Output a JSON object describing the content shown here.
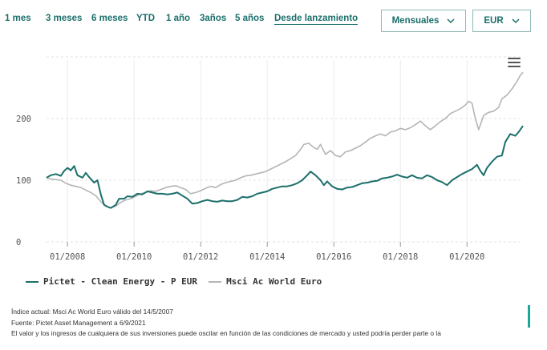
{
  "range_buttons": [
    {
      "label": "1 mes"
    },
    {
      "label": "3 meses"
    },
    {
      "label": "6 meses"
    },
    {
      "label": "YTD"
    },
    {
      "label": "1 año"
    },
    {
      "label": "3años"
    },
    {
      "label": "5 años"
    },
    {
      "label": "Desde lanzamiento",
      "active": true
    }
  ],
  "frequency_select": {
    "value": "Mensuales"
  },
  "currency_select": {
    "value": "EUR"
  },
  "icons": {
    "menu": "hamburger-menu-icon",
    "dropdown": "chevron-down-icon"
  },
  "colors": {
    "fund": "#1b6f6b",
    "benchmark": "#b5b5b5",
    "accent": "#1a6e6a"
  },
  "chart_data": {
    "type": "line",
    "x_ticks": [
      "01/2008",
      "01/2010",
      "01/2012",
      "01/2014",
      "01/2016",
      "01/2018",
      "01/2020"
    ],
    "y_ticks": [
      "0",
      "100",
      "200"
    ],
    "ylim": [
      0,
      300
    ],
    "xlim": [
      2007.37,
      2021.68
    ],
    "series": [
      {
        "name": "Pictet - Clean Energy - P EUR",
        "points": [
          [
            2007.37,
            104
          ],
          [
            2007.5,
            108
          ],
          [
            2007.65,
            110
          ],
          [
            2007.8,
            107
          ],
          [
            2007.9,
            115
          ],
          [
            2008.0,
            120
          ],
          [
            2008.1,
            116
          ],
          [
            2008.2,
            123
          ],
          [
            2008.3,
            108
          ],
          [
            2008.45,
            104
          ],
          [
            2008.55,
            112
          ],
          [
            2008.65,
            105
          ],
          [
            2008.8,
            96
          ],
          [
            2008.9,
            100
          ],
          [
            2009.0,
            77
          ],
          [
            2009.1,
            60
          ],
          [
            2009.2,
            57
          ],
          [
            2009.3,
            55
          ],
          [
            2009.45,
            60
          ],
          [
            2009.55,
            70
          ],
          [
            2009.7,
            70
          ],
          [
            2009.8,
            74
          ],
          [
            2009.95,
            73
          ],
          [
            2010.1,
            78
          ],
          [
            2010.25,
            77
          ],
          [
            2010.4,
            82
          ],
          [
            2010.55,
            80
          ],
          [
            2010.7,
            78
          ],
          [
            2010.85,
            78
          ],
          [
            2011.0,
            77
          ],
          [
            2011.15,
            78
          ],
          [
            2011.3,
            80
          ],
          [
            2011.45,
            75
          ],
          [
            2011.6,
            70
          ],
          [
            2011.75,
            62
          ],
          [
            2011.9,
            63
          ],
          [
            2012.05,
            66
          ],
          [
            2012.2,
            68
          ],
          [
            2012.35,
            66
          ],
          [
            2012.5,
            65
          ],
          [
            2012.65,
            67
          ],
          [
            2012.8,
            66
          ],
          [
            2012.95,
            66
          ],
          [
            2013.1,
            68
          ],
          [
            2013.25,
            73
          ],
          [
            2013.4,
            72
          ],
          [
            2013.55,
            74
          ],
          [
            2013.7,
            78
          ],
          [
            2013.85,
            80
          ],
          [
            2014.0,
            82
          ],
          [
            2014.15,
            86
          ],
          [
            2014.3,
            88
          ],
          [
            2014.45,
            90
          ],
          [
            2014.6,
            90
          ],
          [
            2014.75,
            92
          ],
          [
            2014.9,
            95
          ],
          [
            2015.05,
            100
          ],
          [
            2015.2,
            108
          ],
          [
            2015.3,
            114
          ],
          [
            2015.45,
            108
          ],
          [
            2015.6,
            100
          ],
          [
            2015.7,
            92
          ],
          [
            2015.8,
            98
          ],
          [
            2015.95,
            90
          ],
          [
            2016.1,
            86
          ],
          [
            2016.25,
            85
          ],
          [
            2016.4,
            88
          ],
          [
            2016.55,
            89
          ],
          [
            2016.7,
            92
          ],
          [
            2016.85,
            95
          ],
          [
            2017.0,
            96
          ],
          [
            2017.15,
            98
          ],
          [
            2017.3,
            99
          ],
          [
            2017.45,
            103
          ],
          [
            2017.6,
            104
          ],
          [
            2017.75,
            106
          ],
          [
            2017.9,
            109
          ],
          [
            2018.05,
            106
          ],
          [
            2018.2,
            104
          ],
          [
            2018.35,
            108
          ],
          [
            2018.5,
            104
          ],
          [
            2018.65,
            103
          ],
          [
            2018.8,
            108
          ],
          [
            2018.95,
            105
          ],
          [
            2019.1,
            100
          ],
          [
            2019.25,
            97
          ],
          [
            2019.4,
            92
          ],
          [
            2019.55,
            100
          ],
          [
            2019.7,
            105
          ],
          [
            2019.85,
            110
          ],
          [
            2020.0,
            114
          ],
          [
            2020.15,
            118
          ],
          [
            2020.3,
            125
          ],
          [
            2020.4,
            115
          ],
          [
            2020.5,
            108
          ],
          [
            2020.6,
            120
          ],
          [
            2020.75,
            130
          ],
          [
            2020.9,
            138
          ],
          [
            2021.05,
            140
          ],
          [
            2021.15,
            162
          ],
          [
            2021.3,
            175
          ],
          [
            2021.45,
            172
          ],
          [
            2021.55,
            178
          ],
          [
            2021.68,
            188
          ]
        ]
      },
      {
        "name": "Msci Ac World Euro",
        "points": [
          [
            2007.37,
            104
          ],
          [
            2007.5,
            102
          ],
          [
            2007.65,
            101
          ],
          [
            2007.8,
            100
          ],
          [
            2007.95,
            95
          ],
          [
            2008.1,
            92
          ],
          [
            2008.25,
            90
          ],
          [
            2008.4,
            88
          ],
          [
            2008.55,
            84
          ],
          [
            2008.7,
            80
          ],
          [
            2008.85,
            75
          ],
          [
            2009.0,
            65
          ],
          [
            2009.15,
            58
          ],
          [
            2009.3,
            55
          ],
          [
            2009.45,
            58
          ],
          [
            2009.6,
            64
          ],
          [
            2009.75,
            68
          ],
          [
            2009.9,
            70
          ],
          [
            2010.05,
            74
          ],
          [
            2010.2,
            78
          ],
          [
            2010.35,
            80
          ],
          [
            2010.5,
            83
          ],
          [
            2010.65,
            82
          ],
          [
            2010.8,
            85
          ],
          [
            2010.95,
            88
          ],
          [
            2011.1,
            90
          ],
          [
            2011.25,
            91
          ],
          [
            2011.4,
            88
          ],
          [
            2011.55,
            85
          ],
          [
            2011.7,
            78
          ],
          [
            2011.85,
            80
          ],
          [
            2012.0,
            83
          ],
          [
            2012.15,
            87
          ],
          [
            2012.3,
            90
          ],
          [
            2012.45,
            88
          ],
          [
            2012.6,
            93
          ],
          [
            2012.75,
            96
          ],
          [
            2012.9,
            98
          ],
          [
            2013.05,
            100
          ],
          [
            2013.2,
            104
          ],
          [
            2013.35,
            107
          ],
          [
            2013.5,
            108
          ],
          [
            2013.65,
            110
          ],
          [
            2013.8,
            112
          ],
          [
            2013.95,
            114
          ],
          [
            2014.1,
            118
          ],
          [
            2014.25,
            122
          ],
          [
            2014.4,
            126
          ],
          [
            2014.55,
            130
          ],
          [
            2014.7,
            135
          ],
          [
            2014.85,
            140
          ],
          [
            2015.0,
            150
          ],
          [
            2015.1,
            158
          ],
          [
            2015.25,
            160
          ],
          [
            2015.35,
            155
          ],
          [
            2015.5,
            150
          ],
          [
            2015.6,
            158
          ],
          [
            2015.75,
            142
          ],
          [
            2015.9,
            148
          ],
          [
            2016.05,
            140
          ],
          [
            2016.2,
            138
          ],
          [
            2016.35,
            146
          ],
          [
            2016.5,
            148
          ],
          [
            2016.65,
            152
          ],
          [
            2016.8,
            156
          ],
          [
            2016.95,
            162
          ],
          [
            2017.1,
            168
          ],
          [
            2017.25,
            172
          ],
          [
            2017.4,
            175
          ],
          [
            2017.55,
            172
          ],
          [
            2017.7,
            178
          ],
          [
            2017.85,
            180
          ],
          [
            2018.0,
            184
          ],
          [
            2018.15,
            182
          ],
          [
            2018.3,
            185
          ],
          [
            2018.45,
            190
          ],
          [
            2018.6,
            196
          ],
          [
            2018.75,
            188
          ],
          [
            2018.9,
            182
          ],
          [
            2019.05,
            188
          ],
          [
            2019.2,
            195
          ],
          [
            2019.35,
            200
          ],
          [
            2019.5,
            208
          ],
          [
            2019.65,
            212
          ],
          [
            2019.8,
            216
          ],
          [
            2019.95,
            222
          ],
          [
            2020.05,
            228
          ],
          [
            2020.15,
            225
          ],
          [
            2020.25,
            200
          ],
          [
            2020.35,
            182
          ],
          [
            2020.5,
            205
          ],
          [
            2020.65,
            210
          ],
          [
            2020.8,
            212
          ],
          [
            2020.95,
            218
          ],
          [
            2021.05,
            232
          ],
          [
            2021.2,
            238
          ],
          [
            2021.35,
            248
          ],
          [
            2021.5,
            260
          ],
          [
            2021.6,
            270
          ],
          [
            2021.68,
            275
          ]
        ]
      }
    ]
  },
  "legend": {
    "fund_label": "Pictet - Clean Energy - P EUR",
    "benchmark_label": "Msci Ac World Euro"
  },
  "notes": {
    "line1": "Índice actual: Msci Ac World Euro válido del 14/5/2007",
    "line2": "Fuente: Pictet Asset Management a 6/9/2021",
    "line3": "El valor y los ingresos de cualquiera de sus inversiones puede oscilar en función de las condiciones de mercado y usted podría perder parte o la"
  }
}
